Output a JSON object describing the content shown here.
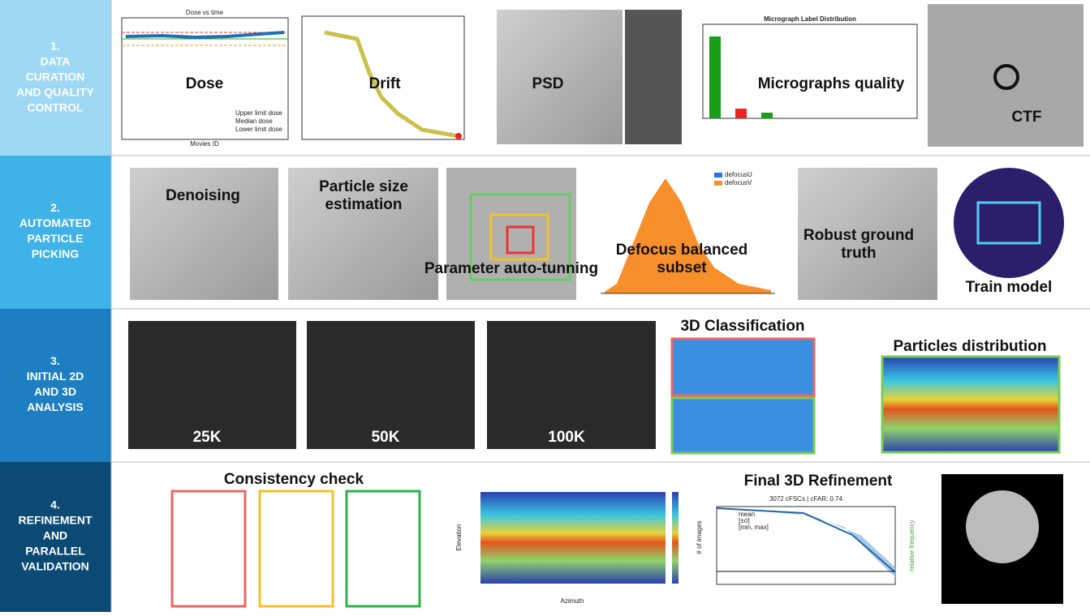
{
  "steps": [
    {
      "label": [
        "1.",
        "DATA",
        "CURATION",
        "AND QUALITY",
        "CONTROL"
      ],
      "panels": [
        "Dose",
        "Drift",
        "PSD",
        "Micrographs quality",
        "CTF"
      ]
    },
    {
      "label": [
        "2.",
        "AUTOMATED",
        "PARTICLE",
        "PICKING"
      ],
      "panels": [
        "Denoising",
        "Particle size estimation",
        "Parameter auto-tunning",
        "Defocus balanced subset",
        "Robust ground truth",
        "Train model"
      ]
    },
    {
      "label": [
        "3.",
        "INITIAL 2D",
        "AND 3D",
        "ANALYSIS"
      ],
      "panels": [
        "25K",
        "50K",
        "100K",
        "3D Classification",
        "Particles distribution"
      ]
    },
    {
      "label": [
        "4.",
        "REFINEMENT",
        "AND",
        "PARALLEL",
        "VALIDATION"
      ],
      "panels": [
        "Consistency check",
        "Final 3D Refinement"
      ]
    }
  ],
  "plots": {
    "dose_title": "Dose vs time",
    "dose_xlabel": "Movies ID",
    "dose_legend": [
      "Upper limit dose",
      "Median dose",
      "Lower limit dose"
    ],
    "quality_title": "Micrograph Label Distribution",
    "defocus_legend": [
      "defocusU",
      "defocusV"
    ],
    "polar_xlabel": "Azimuth",
    "polar_ylabel": "Elevation",
    "polar_cbar": "# of images",
    "fsc_title": "3072 cFSCs | cFAR: 0.74",
    "fsc_legend": [
      "mean",
      "[±σ]",
      "[min, max]"
    ],
    "fsc_y2label": "relative frequency"
  }
}
